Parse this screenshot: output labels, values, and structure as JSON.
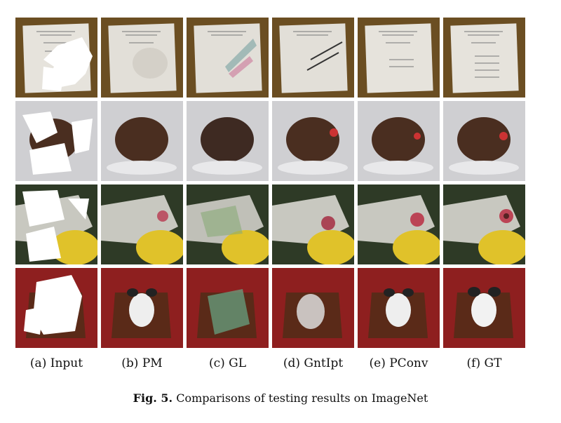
{
  "columns": [
    {
      "label": "(a) Input",
      "method": "input"
    },
    {
      "label": "(b) PM",
      "method": "pm"
    },
    {
      "label": "(c) GL",
      "method": "gl"
    },
    {
      "label": "(d) GntIpt",
      "method": "gntipt"
    },
    {
      "label": "(e) PConv",
      "method": "pconv"
    },
    {
      "label": "(f) GT",
      "method": "gt"
    }
  ],
  "rows": [
    {
      "scene": "document"
    },
    {
      "scene": "animal-in-water"
    },
    {
      "scene": "bird-closeup"
    },
    {
      "scene": "dog-on-chair"
    }
  ],
  "caption": {
    "fig_label": "Fig. 5.",
    "text": "Comparisons of testing results on ImageNet"
  }
}
